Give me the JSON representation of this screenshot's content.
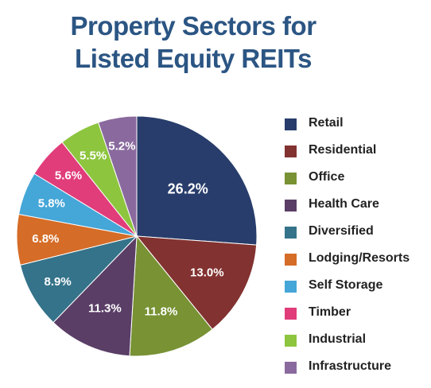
{
  "title_lines": [
    "Property Sectors for",
    "Listed Equity REITs"
  ],
  "chart_data": {
    "type": "pie",
    "title": "Property Sectors for Listed Equity REITs",
    "legend_position": "right",
    "slices": [
      {
        "label": "Retail",
        "value": 26.2,
        "display": "26.2%",
        "color": "#283d6b"
      },
      {
        "label": "Residential",
        "value": 13.0,
        "display": "13.0%",
        "color": "#823230"
      },
      {
        "label": "Office",
        "value": 11.8,
        "display": "11.8%",
        "color": "#789234"
      },
      {
        "label": "Health Care",
        "value": 11.3,
        "display": "11.3%",
        "color": "#5a3e66"
      },
      {
        "label": "Diversified",
        "value": 8.9,
        "display": "8.9%",
        "color": "#34738a"
      },
      {
        "label": "Lodging/Resorts",
        "value": 6.8,
        "display": "6.8%",
        "color": "#d56c27"
      },
      {
        "label": "Self Storage",
        "value": 5.8,
        "display": "5.8%",
        "color": "#45a6d8"
      },
      {
        "label": "Timber",
        "value": 5.6,
        "display": "5.6%",
        "color": "#e03d7a"
      },
      {
        "label": "Industrial",
        "value": 5.5,
        "display": "5.5%",
        "color": "#8dc53f"
      },
      {
        "label": "Infrastructure",
        "value": 5.2,
        "display": "5.2%",
        "color": "#8a6a9e"
      }
    ]
  }
}
